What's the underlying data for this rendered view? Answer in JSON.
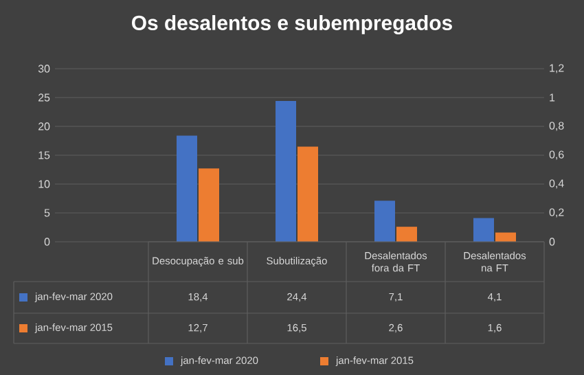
{
  "chart_data": {
    "type": "bar",
    "title": "Os desalentos e subempregados",
    "categories": [
      "Desocupação e sub",
      "Subutilização",
      "Desalentados fora da FT",
      "Desalentados na FT"
    ],
    "series": [
      {
        "name": "jan-fev-mar 2020",
        "color": "#4472c4",
        "values": [
          18.4,
          24.4,
          7.1,
          4.1
        ],
        "value_labels": [
          "18,4",
          "24,4",
          "7,1",
          "4,1"
        ]
      },
      {
        "name": "jan-fev-mar 2015",
        "color": "#ed7d31",
        "values": [
          12.7,
          16.5,
          2.6,
          1.6
        ],
        "value_labels": [
          "12,7",
          "16,5",
          "2,6",
          "1,6"
        ]
      }
    ],
    "ylim": [
      0,
      30
    ],
    "yticks": [
      0,
      5,
      10,
      15,
      20,
      25,
      30
    ],
    "y2lim": [
      0,
      1.2
    ],
    "y2ticks": [
      0,
      {
        "value": 0.2,
        "label": "0,2"
      },
      {
        "value": 0.4,
        "label": "0,4"
      },
      {
        "value": 0.6,
        "label": "0,6"
      },
      {
        "value": 0.8,
        "label": "0,8"
      },
      1,
      {
        "value": 1.2,
        "label": "1,2"
      }
    ],
    "grid": "y",
    "legend": "bottom"
  }
}
